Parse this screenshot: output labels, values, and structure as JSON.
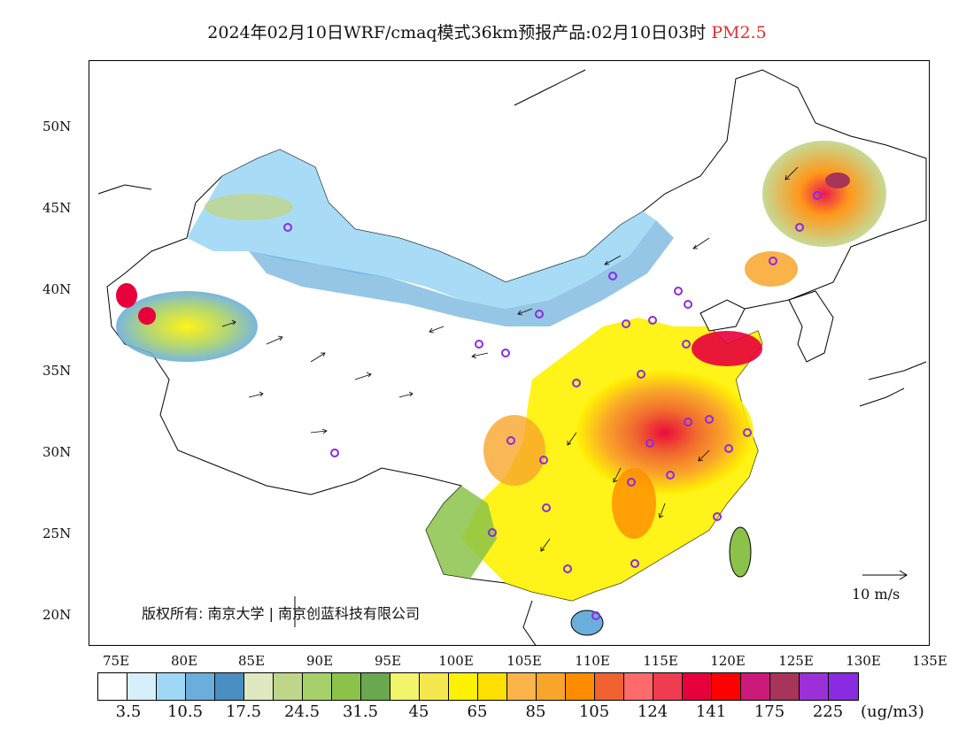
{
  "title": {
    "main": "2024年02月10日WRF/cmaq模式36km预报产品:02月10日03时",
    "pollutant": "PM2.5"
  },
  "map": {
    "lat_labels": [
      "50N",
      "45N",
      "40N",
      "35N",
      "30N",
      "25N",
      "20N"
    ],
    "lon_labels": [
      "75E",
      "80E",
      "85E",
      "90E",
      "95E",
      "100E",
      "105E",
      "110E",
      "115E",
      "120E",
      "125E",
      "130E",
      "135E"
    ],
    "copyright": "版权所有: 南京大学 | 南京创蓝科技有限公司",
    "wind_scale_label": "10 m/s",
    "icons": [
      "city-marker-icon",
      "wind-arrow-icon"
    ],
    "land_color": "#ffffff",
    "coast_color": "#000000",
    "city_marker_color": "#8a2be2"
  },
  "legend": {
    "colors": [
      "#ffffff",
      "#d6effc",
      "#9fd8f5",
      "#6aaedc",
      "#4a8fc4",
      "#dfe8c0",
      "#bfd68a",
      "#a6d06a",
      "#8bc34a",
      "#6aa84f",
      "#f2f56a",
      "#f5e84e",
      "#fff200",
      "#ffe000",
      "#fbb44a",
      "#f9a52a",
      "#ff8c00",
      "#f06230",
      "#ff6b6b",
      "#f03c50",
      "#e8003c",
      "#ff0000",
      "#cc1a7a",
      "#a8345a",
      "#9b30d9",
      "#8a2be2"
    ],
    "ticks": [
      "3.5",
      "10.5",
      "17.5",
      "24.5",
      "31.5",
      "45",
      "65",
      "85",
      "105",
      "124",
      "141",
      "175",
      "225"
    ],
    "unit": "(ug/m3)"
  }
}
